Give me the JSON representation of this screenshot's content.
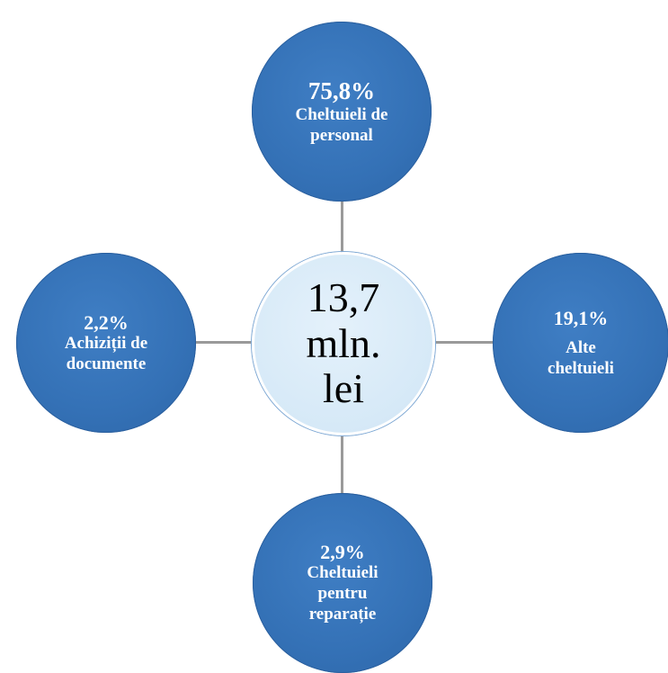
{
  "center": {
    "text": "13,7\nmln.\nlei",
    "color": "#d6e9f7"
  },
  "nodes": {
    "top": {
      "percent": "75,8%",
      "label": "Cheltuieli de\npersonal"
    },
    "left": {
      "percent": "2,2%",
      "label": "Achiziții de\ndocumente"
    },
    "right": {
      "percent": "19,1%",
      "label": "Alte\ncheltuieli"
    },
    "bottom": {
      "percent": "2,9%",
      "label": "Cheltuieli\npentru\nreparație"
    }
  },
  "colors": {
    "node": "#3471b6",
    "connector": "#9a9a9a",
    "node_text": "#ffffff"
  }
}
